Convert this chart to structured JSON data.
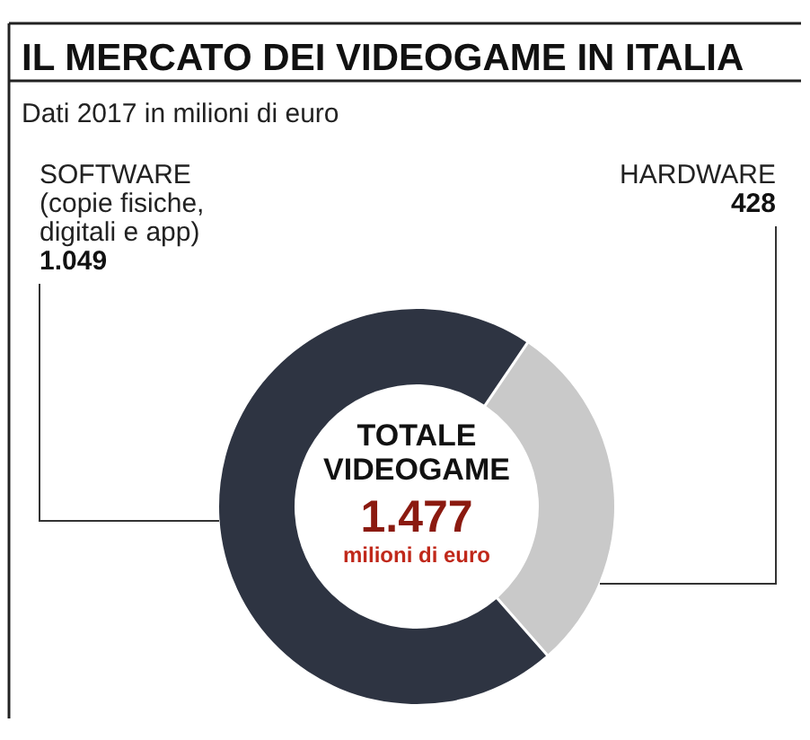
{
  "chart_data": {
    "type": "donut",
    "title": "IL MERCATO DEI VIDEOGAME IN ITALIA",
    "subtitle": "Dati 2017 in milioni di euro",
    "categories": [
      "SOFTWARE (copie fisiche, digitali e app)",
      "HARDWARE"
    ],
    "values": [
      1049,
      428
    ],
    "value_labels": [
      "1.049",
      "428"
    ],
    "colors": [
      "#2e3442",
      "#c9c9c9"
    ],
    "annotations": [
      "TOTALE VIDEOGAME",
      "1.477",
      "milioni di euro"
    ]
  }
}
